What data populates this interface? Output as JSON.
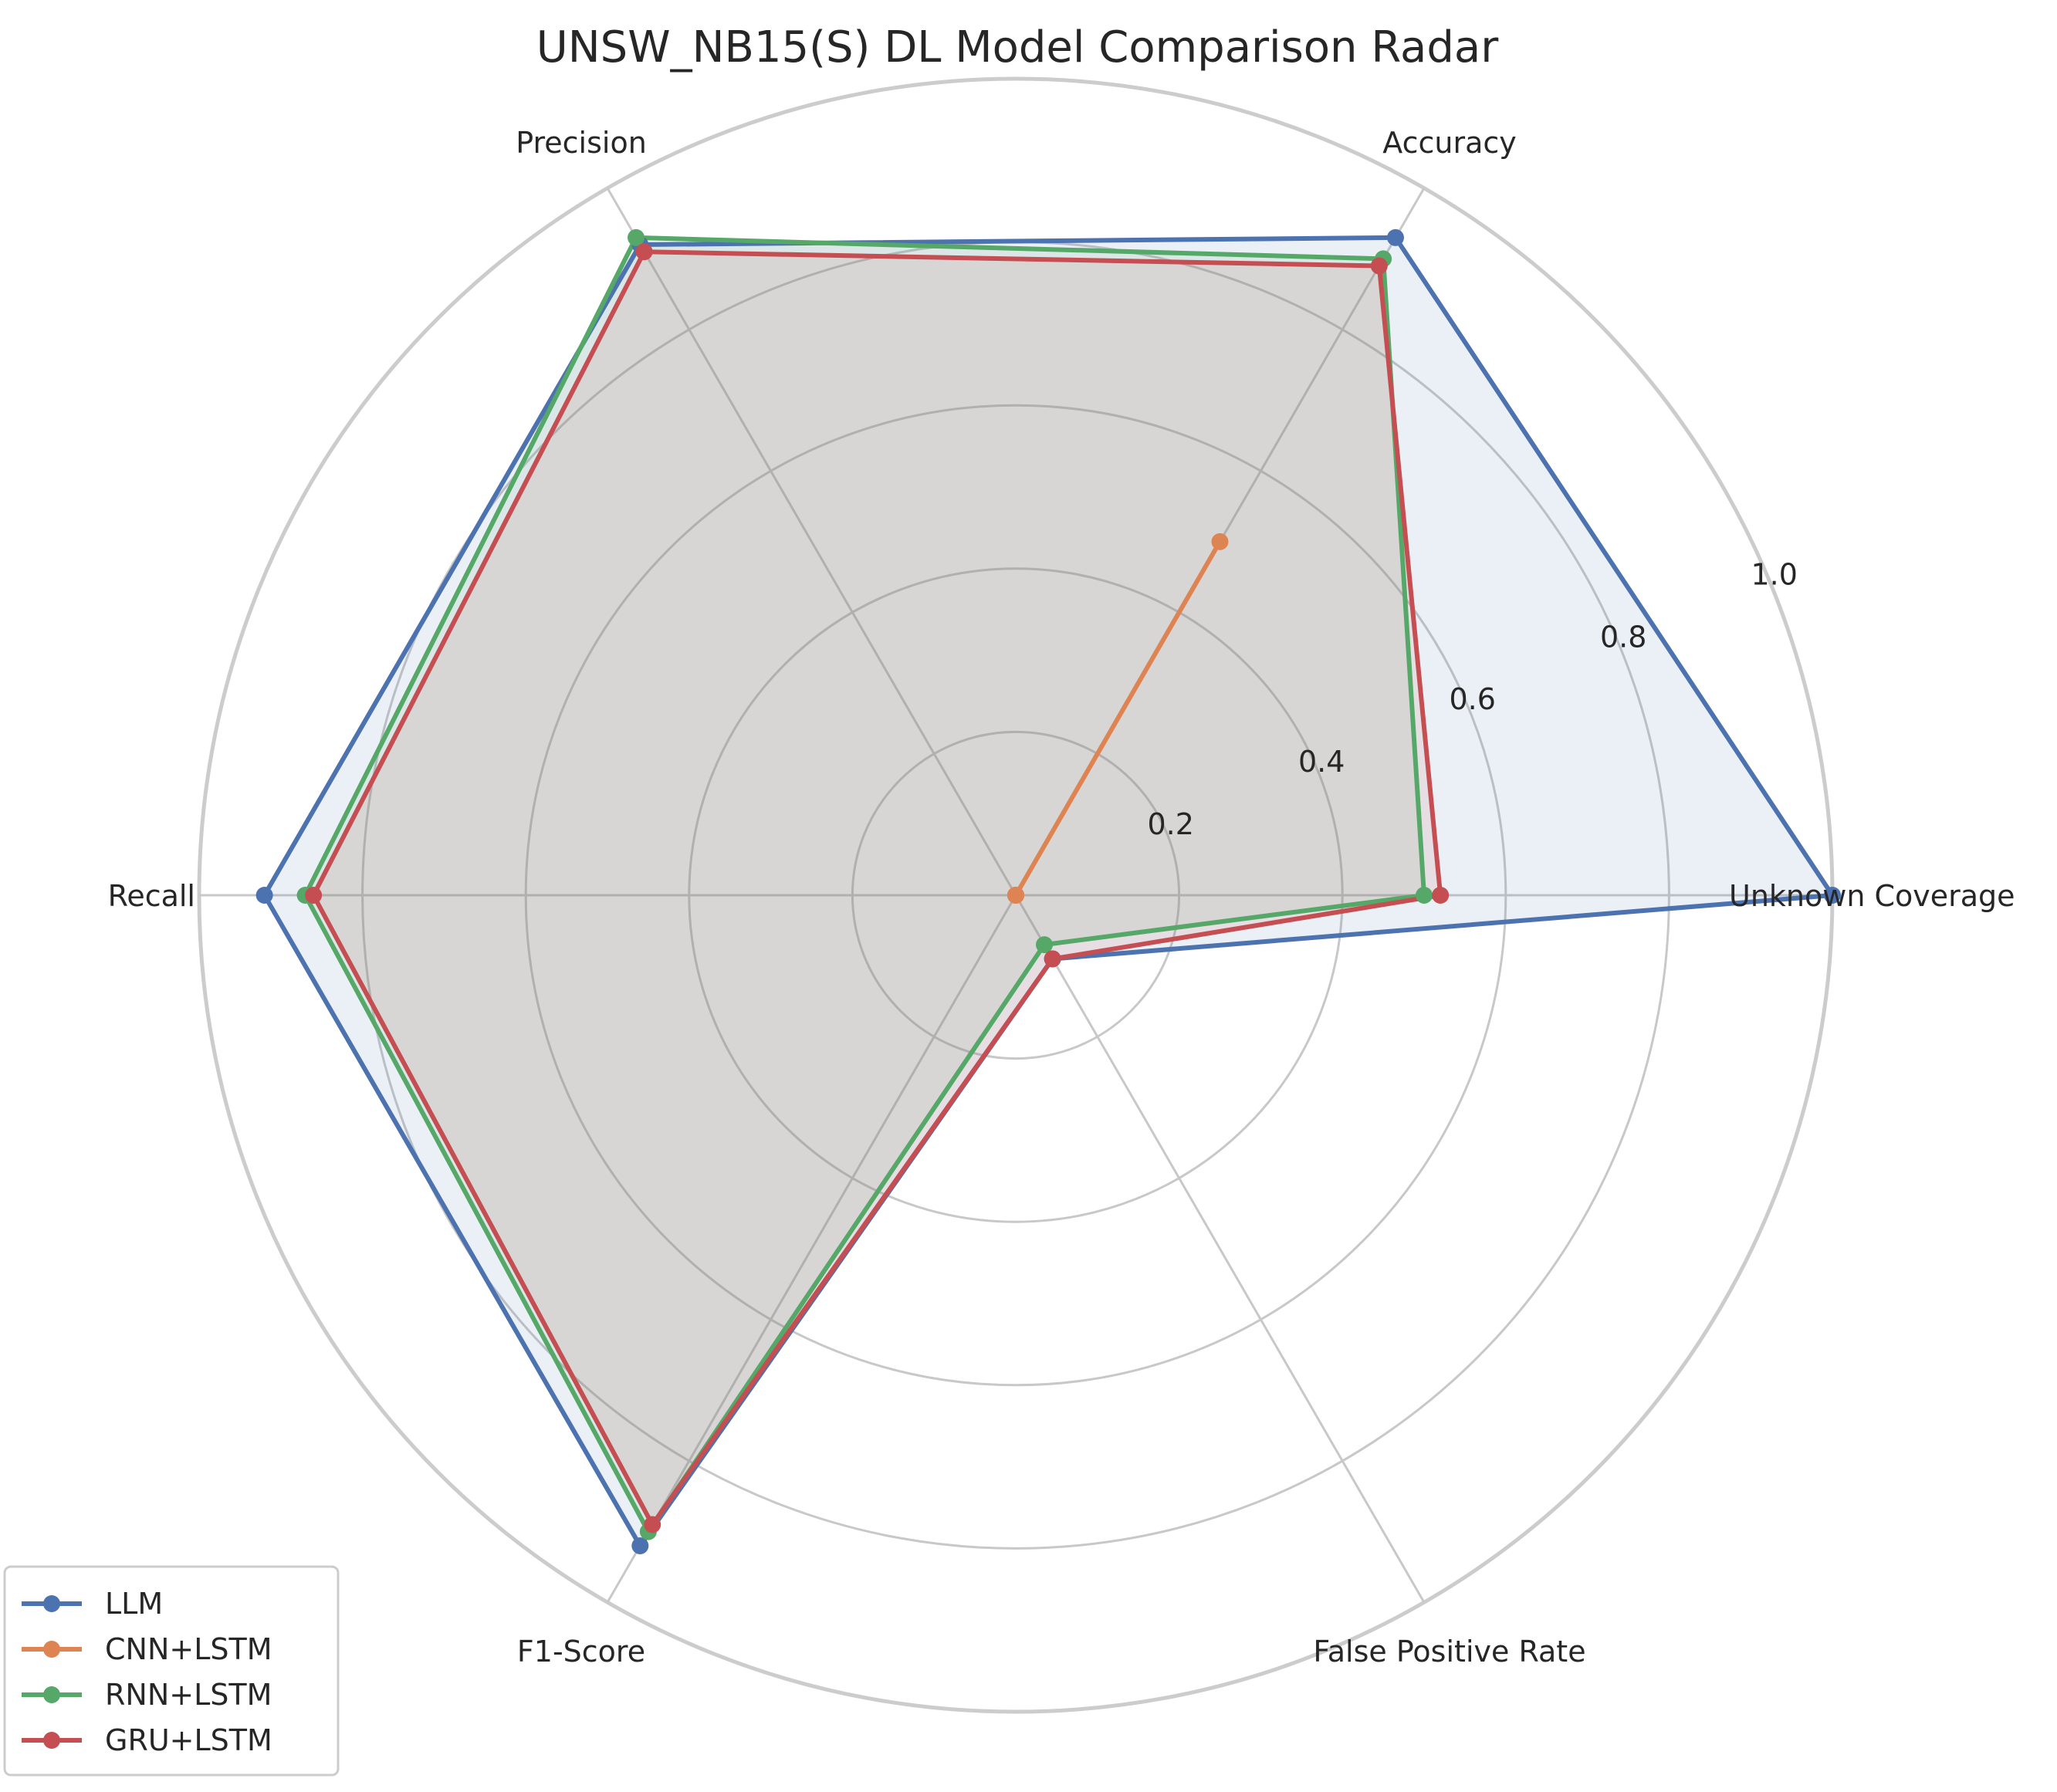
{
  "chart_data": {
    "type": "radar",
    "title": "UNSW_NB15(S) DL Model Comparison Radar",
    "axes": [
      "Unknown Coverage",
      "Accuracy",
      "Precision",
      "Recall",
      "F1-Score",
      "False Positive Rate"
    ],
    "rlim": [
      0,
      1.0
    ],
    "rticks": [
      0.2,
      0.4,
      0.6,
      0.8,
      1.0
    ],
    "rtick_labels": [
      "0.2",
      "0.4",
      "0.6",
      "0.8",
      "1.0"
    ],
    "grid": true,
    "legend_position": "bottom-left",
    "series": [
      {
        "name": "LLM",
        "color": "#4c72b0",
        "filled": true,
        "values": [
          1.0,
          0.93,
          0.92,
          0.92,
          0.92,
          0.09
        ]
      },
      {
        "name": "CNN+LSTM",
        "color": "#dd8452",
        "filled": false,
        "values": [
          0.0,
          0.5,
          0.0,
          0.0,
          0.0,
          0.0
        ]
      },
      {
        "name": "RNN+LSTM",
        "color": "#55a868",
        "filled": true,
        "values": [
          0.5,
          0.9,
          0.93,
          0.87,
          0.9,
          0.07
        ]
      },
      {
        "name": "GRU+LSTM",
        "color": "#c44e52",
        "filled": true,
        "values": [
          0.52,
          0.89,
          0.91,
          0.86,
          0.89,
          0.09
        ]
      }
    ]
  }
}
